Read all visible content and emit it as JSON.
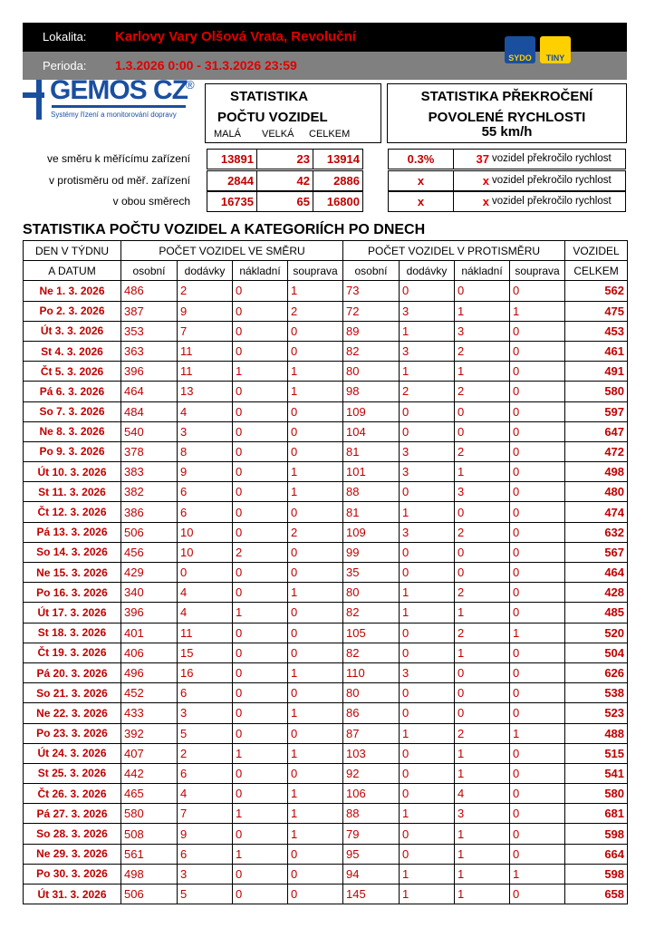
{
  "header": {
    "location_label": "Lokalita:",
    "location": "Karlovy Vary Olšová Vrata, Revoluční",
    "period_label": "Perioda:",
    "period": "1.3.2026 0:00 - 31.3.2026 23:59",
    "logo_sydo": "SYDO",
    "logo_tiny": "TINY"
  },
  "brand": {
    "name": "GEMOS CZ",
    "mark": "®",
    "tagline": "Systémy řízení a monitorování dopravy"
  },
  "summary": {
    "count_title": [
      "STATISTIKA",
      "POČTU VOZIDEL"
    ],
    "count_columns": [
      "MALÁ",
      "VELKÁ",
      "CELKEM"
    ],
    "speed_title": [
      "STATISTIKA PŘEKROČENÍ",
      "POVOLENÉ RYCHLOSTI"
    ],
    "speed_limit": "55 km/h",
    "rows": [
      {
        "label": "ve směru k měřícímu zařízení",
        "small": 13891,
        "large": 23,
        "total": 13914,
        "percent": "0.3%",
        "speeding": 37,
        "speeding_text": "vozidel překročilo rychlost"
      },
      {
        "label": "v protisměru od měř. zařízení",
        "small": 2844,
        "large": 42,
        "total": 2886,
        "percent": "x",
        "speeding": "x",
        "speeding_text": "vozidel překročilo rychlost"
      },
      {
        "label": "v obou směrech",
        "small": 16735,
        "large": 65,
        "total": 16800,
        "percent": "x",
        "speeding": "x",
        "speeding_text": "vozidel překročilo rychlost"
      }
    ]
  },
  "table": {
    "title": "STATISTIKA POČTU VOZIDEL A KATEGORIÍCH PO DNECH",
    "header": {
      "day": [
        "DEN V TÝDNU",
        "A DATUM"
      ],
      "group_forward": "POČET VOZIDEL VE SMĚRU",
      "group_backward": "POČET VOZIDEL V PROTISMĚRU",
      "total": [
        "VOZIDEL",
        "CELKEM"
      ],
      "subcolumns_forward": [
        "osobní",
        "dodávky",
        "nákladní",
        "souprava"
      ],
      "subcolumns_backward": [
        "osobní",
        "dodávky",
        "nákladní",
        "souprava"
      ]
    },
    "rows": [
      [
        "Ne 1. 3. 2026",
        486,
        2,
        0,
        1,
        73,
        0,
        0,
        0,
        562
      ],
      [
        "Po 2. 3. 2026",
        387,
        9,
        0,
        2,
        72,
        3,
        1,
        1,
        475
      ],
      [
        "Út 3. 3. 2026",
        353,
        7,
        0,
        0,
        89,
        1,
        3,
        0,
        453
      ],
      [
        "St 4. 3. 2026",
        363,
        11,
        0,
        0,
        82,
        3,
        2,
        0,
        461
      ],
      [
        "Čt 5. 3. 2026",
        396,
        11,
        1,
        1,
        80,
        1,
        1,
        0,
        491
      ],
      [
        "Pá 6. 3. 2026",
        464,
        13,
        0,
        1,
        98,
        2,
        2,
        0,
        580
      ],
      [
        "So 7. 3. 2026",
        484,
        4,
        0,
        0,
        109,
        0,
        0,
        0,
        597
      ],
      [
        "Ne 8. 3. 2026",
        540,
        3,
        0,
        0,
        104,
        0,
        0,
        0,
        647
      ],
      [
        "Po 9. 3. 2026",
        378,
        8,
        0,
        0,
        81,
        3,
        2,
        0,
        472
      ],
      [
        "Út 10. 3. 2026",
        383,
        9,
        0,
        1,
        101,
        3,
        1,
        0,
        498
      ],
      [
        "St 11. 3. 2026",
        382,
        6,
        0,
        1,
        88,
        0,
        3,
        0,
        480
      ],
      [
        "Čt 12. 3. 2026",
        386,
        6,
        0,
        0,
        81,
        1,
        0,
        0,
        474
      ],
      [
        "Pá 13. 3. 2026",
        506,
        10,
        0,
        2,
        109,
        3,
        2,
        0,
        632
      ],
      [
        "So 14. 3. 2026",
        456,
        10,
        2,
        0,
        99,
        0,
        0,
        0,
        567
      ],
      [
        "Ne 15. 3. 2026",
        429,
        0,
        0,
        0,
        35,
        0,
        0,
        0,
        464
      ],
      [
        "Po 16. 3. 2026",
        340,
        4,
        0,
        1,
        80,
        1,
        2,
        0,
        428
      ],
      [
        "Út 17. 3. 2026",
        396,
        4,
        1,
        0,
        82,
        1,
        1,
        0,
        485
      ],
      [
        "St 18. 3. 2026",
        401,
        11,
        0,
        0,
        105,
        0,
        2,
        1,
        520
      ],
      [
        "Čt 19. 3. 2026",
        406,
        15,
        0,
        0,
        82,
        0,
        1,
        0,
        504
      ],
      [
        "Pá 20. 3. 2026",
        496,
        16,
        0,
        1,
        110,
        3,
        0,
        0,
        626
      ],
      [
        "So 21. 3. 2026",
        452,
        6,
        0,
        0,
        80,
        0,
        0,
        0,
        538
      ],
      [
        "Ne 22. 3. 2026",
        433,
        3,
        0,
        1,
        86,
        0,
        0,
        0,
        523
      ],
      [
        "Po 23. 3. 2026",
        392,
        5,
        0,
        0,
        87,
        1,
        2,
        1,
        488
      ],
      [
        "Út 24. 3. 2026",
        407,
        2,
        1,
        1,
        103,
        0,
        1,
        0,
        515
      ],
      [
        "St 25. 3. 2026",
        442,
        6,
        0,
        0,
        92,
        0,
        1,
        0,
        541
      ],
      [
        "Čt 26. 3. 2026",
        465,
        4,
        0,
        1,
        106,
        0,
        4,
        0,
        580
      ],
      [
        "Pá 27. 3. 2026",
        580,
        7,
        1,
        1,
        88,
        1,
        3,
        0,
        681
      ],
      [
        "So 28. 3. 2026",
        508,
        9,
        0,
        1,
        79,
        0,
        1,
        0,
        598
      ],
      [
        "Ne 29. 3. 2026",
        561,
        6,
        1,
        0,
        95,
        0,
        1,
        0,
        664
      ],
      [
        "Po 30. 3. 2026",
        498,
        3,
        0,
        0,
        94,
        1,
        1,
        1,
        598
      ],
      [
        "Út 31. 3. 2026",
        506,
        5,
        0,
        0,
        145,
        1,
        1,
        0,
        658
      ]
    ]
  }
}
